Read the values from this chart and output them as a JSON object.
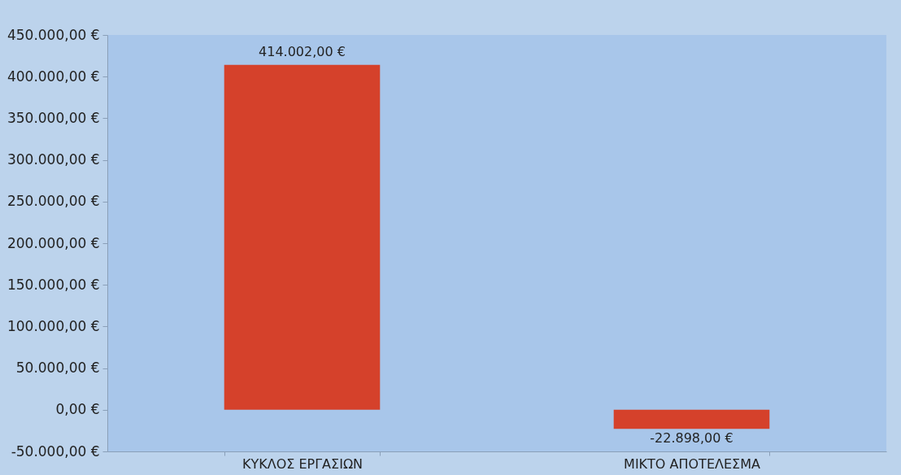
{
  "chart_data": {
    "type": "bar",
    "categories": [
      "ΚΥΚΛΟΣ ΕΡΓΑΣΙΩΝ",
      "ΜΙΚΤΟ ΑΠΟΤΕΛΕΣΜΑ"
    ],
    "values": [
      414002,
      -22898
    ],
    "color": "#d5412b",
    "value_labels": [
      "414.002,00 €",
      "-22.898,00 €"
    ],
    "ylim": [
      -50000,
      450000
    ],
    "yticks": [
      {
        "value": -50000,
        "label": "-50.000,00 €"
      },
      {
        "value": 0,
        "label": "0,00 €"
      },
      {
        "value": 50000,
        "label": "50.000,00 €"
      },
      {
        "value": 100000,
        "label": "100.000,00 €"
      },
      {
        "value": 150000,
        "label": "150.000,00 €"
      },
      {
        "value": 200000,
        "label": "200.000,00 €"
      },
      {
        "value": 250000,
        "label": "250.000,00 €"
      },
      {
        "value": 300000,
        "label": "300.000,00 €"
      },
      {
        "value": 350000,
        "label": "350.000,00 €"
      },
      {
        "value": 400000,
        "label": "400.000,00 €"
      },
      {
        "value": 450000,
        "label": "450.000,00 €"
      }
    ],
    "data_labels": false
  }
}
